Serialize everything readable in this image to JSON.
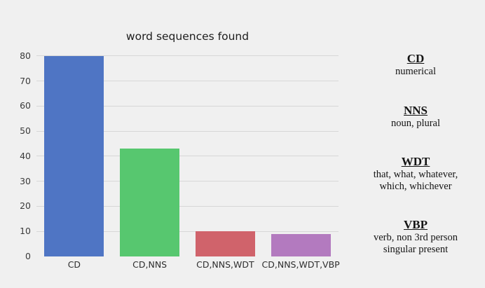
{
  "chart_data": {
    "type": "bar",
    "title": "word sequences found",
    "categories": [
      "CD",
      "CD,NNS",
      "CD,NNS,WDT",
      "CD,NNS,WDT,VBP"
    ],
    "values": [
      80,
      43,
      10,
      9
    ],
    "bar_colors": [
      "#4f75c4",
      "#57c76f",
      "#d0636b",
      "#b37abf"
    ],
    "xlabel": "",
    "ylabel": "",
    "ylim": [
      0,
      85
    ],
    "yticks": [
      0,
      10,
      20,
      30,
      40,
      50,
      60,
      70,
      80
    ],
    "grid": true,
    "legend_position": "none",
    "background_color": "#f0f0f0",
    "gridline_color": "#d7d7d7"
  },
  "definitions": [
    {
      "term": "CD",
      "lines": [
        "numerical"
      ]
    },
    {
      "term": "NNS",
      "lines": [
        "noun, plural"
      ]
    },
    {
      "term": "WDT",
      "lines": [
        "that, what, whatever,",
        "which, whichever"
      ]
    },
    {
      "term": "VBP",
      "lines": [
        "verb, non 3rd person",
        "singular present"
      ]
    }
  ]
}
